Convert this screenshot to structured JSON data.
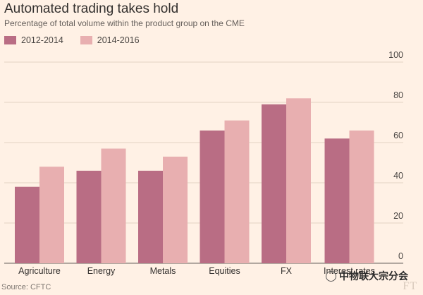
{
  "chart_data": {
    "type": "bar",
    "title": "Automated trading takes hold",
    "subtitle": "Percentage of total volume within the product group on the CME",
    "categories": [
      "Agriculture",
      "Energy",
      "Metals",
      "Equities",
      "FX",
      "Interest rates"
    ],
    "series": [
      {
        "name": "2012-2014",
        "color": "#b96d84",
        "values": [
          38,
          46,
          46,
          66,
          79,
          62
        ]
      },
      {
        "name": "2014-2016",
        "color": "#e8afb0",
        "values": [
          48,
          57,
          53,
          71,
          82,
          66
        ]
      }
    ],
    "ylim": [
      0,
      100
    ],
    "yticks": [
      0,
      20,
      40,
      60,
      80,
      100
    ],
    "y_axis_side": "right",
    "grid": true,
    "legend_placement": "top-left",
    "source": "Source: CFTC"
  },
  "branding": {
    "logo": "FT",
    "watermark": "中物联大宗分会"
  }
}
